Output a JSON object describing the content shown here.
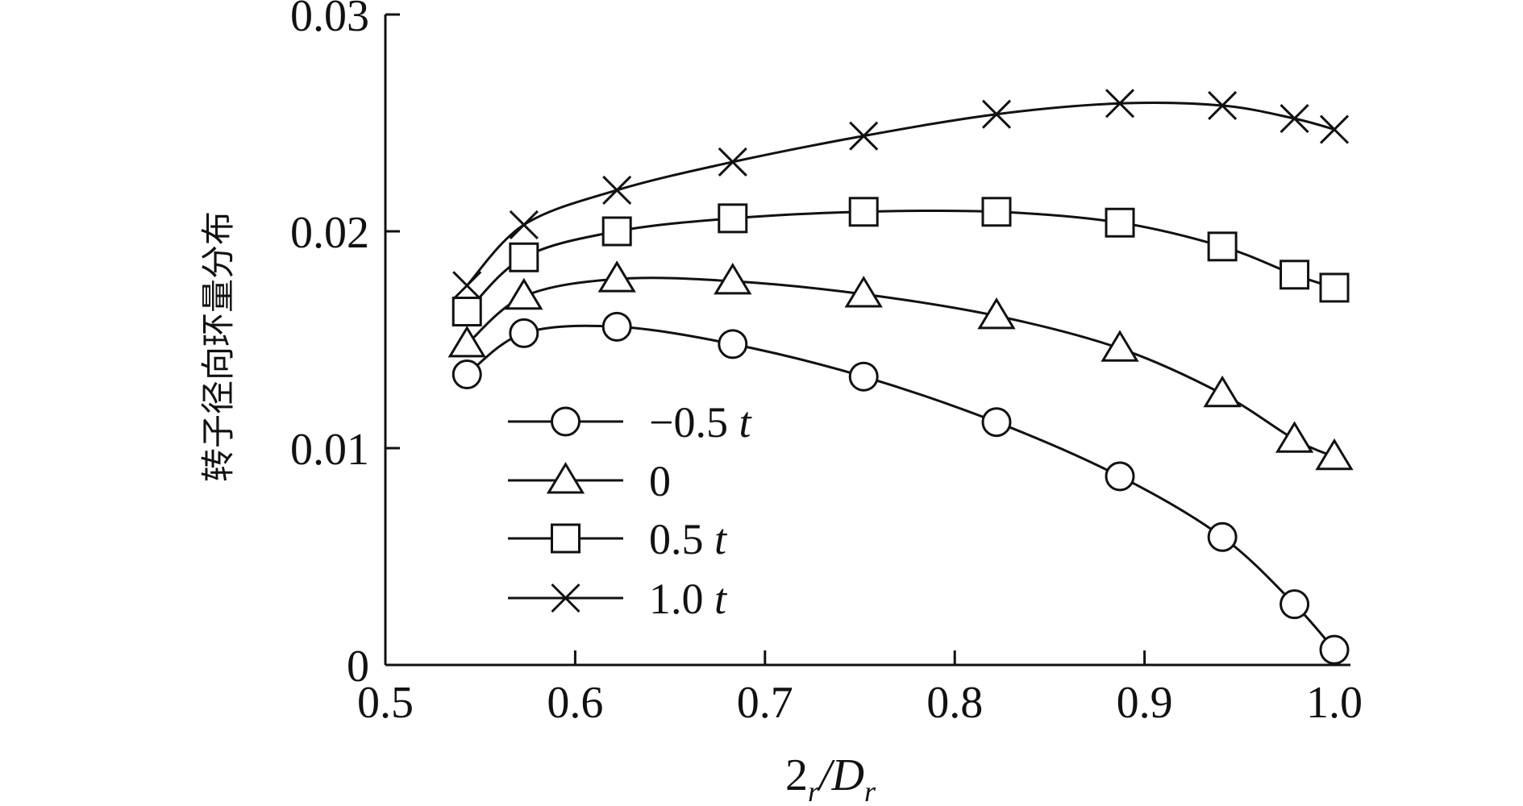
{
  "chart_data": {
    "type": "line",
    "title": "",
    "xlabel": {
      "main": "2",
      "sub1": "r",
      "slash": "/D",
      "sub2": "r"
    },
    "ylabel": "转子径向环量分布",
    "xlim": [
      0.5,
      1.0
    ],
    "ylim": [
      0,
      0.03
    ],
    "xticks": [
      "0.5",
      "0.6",
      "0.7",
      "0.8",
      "0.9",
      "1.0"
    ],
    "yticks": [
      "0",
      "0.01",
      "0.02",
      "0.03"
    ],
    "grid": false,
    "legend_position": "lower-left",
    "x": [
      0.543,
      0.573,
      0.622,
      0.683,
      0.752,
      0.822,
      0.887,
      0.941,
      0.979,
      1.0
    ],
    "series": [
      {
        "label_main": "−0.5 ",
        "label_unit": "t",
        "marker": "circle",
        "values": [
          0.0134,
          0.0153,
          0.0156,
          0.0148,
          0.0133,
          0.0112,
          0.0087,
          0.0059,
          0.0028,
          0.0007
        ]
      },
      {
        "label_main": "0",
        "label_unit": "",
        "marker": "triangle",
        "values": [
          0.0148,
          0.017,
          0.0178,
          0.0177,
          0.0171,
          0.0161,
          0.0146,
          0.0125,
          0.0104,
          0.0096
        ]
      },
      {
        "label_main": "0.5 ",
        "label_unit": "t",
        "marker": "square",
        "values": [
          0.0163,
          0.0188,
          0.02,
          0.0206,
          0.0209,
          0.0209,
          0.0204,
          0.0193,
          0.018,
          0.0174
        ]
      },
      {
        "label_main": "1.0 ",
        "label_unit": "t",
        "marker": "cross",
        "values": [
          0.0175,
          0.0203,
          0.0219,
          0.0232,
          0.0244,
          0.0254,
          0.0259,
          0.0258,
          0.0252,
          0.0247
        ]
      }
    ],
    "colors": {
      "line": "#111111",
      "background": "#ffffff"
    }
  }
}
